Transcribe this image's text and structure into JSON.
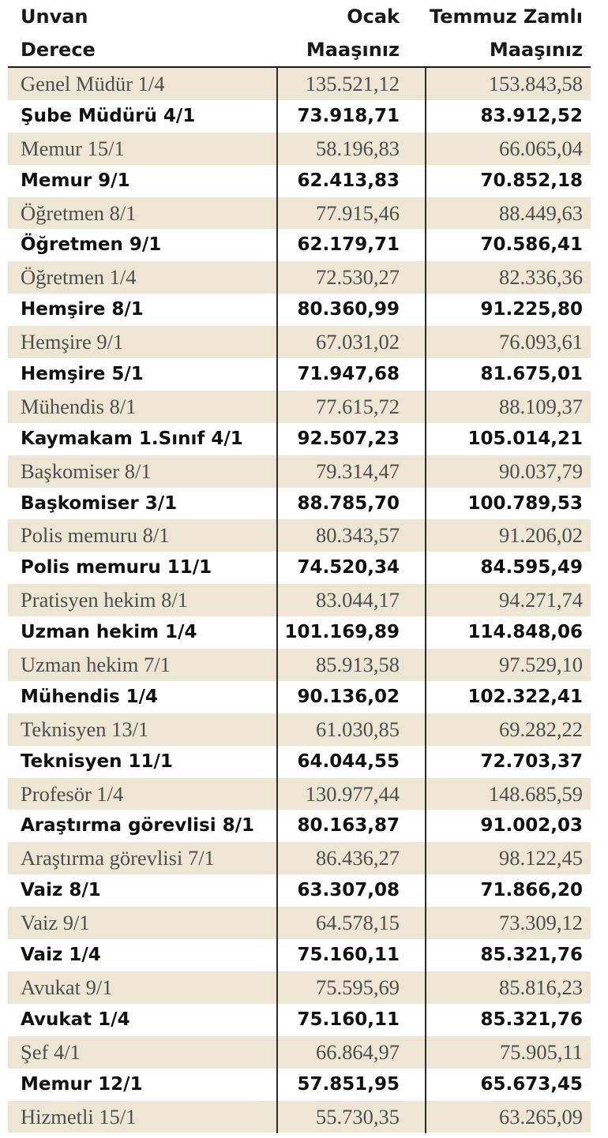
{
  "header": {
    "col1_line1": "Unvan",
    "col1_line2": "Derece",
    "col2_line1": "Ocak",
    "col2_line2": "Maaşınız",
    "col3_line1": "Temmuz Zamlı",
    "col3_line2": "Maaşınız"
  },
  "rows": [
    {
      "title": "Genel Müdür 1/4",
      "jan": "135.521,12",
      "jul": "153.843,58",
      "bold": false
    },
    {
      "title": "Şube Müdürü 4/1",
      "jan": "73.918,71",
      "jul": "83.912,52",
      "bold": true
    },
    {
      "title": "Memur 15/1",
      "jan": "58.196,83",
      "jul": "66.065,04",
      "bold": false
    },
    {
      "title": "Memur 9/1",
      "jan": "62.413,83",
      "jul": "70.852,18",
      "bold": true
    },
    {
      "title": "Öğretmen 8/1",
      "jan": "77.915,46",
      "jul": "88.449,63",
      "bold": false
    },
    {
      "title": "Öğretmen 9/1",
      "jan": "62.179,71",
      "jul": "70.586,41",
      "bold": true
    },
    {
      "title": "Öğretmen 1/4",
      "jan": "72.530,27",
      "jul": "82.336,36",
      "bold": false
    },
    {
      "title": "Hemşire 8/1",
      "jan": "80.360,99",
      "jul": "91.225,80",
      "bold": true
    },
    {
      "title": "Hemşire 9/1",
      "jan": "67.031,02",
      "jul": "76.093,61",
      "bold": false
    },
    {
      "title": "Hemşire 5/1",
      "jan": "71.947,68",
      "jul": "81.675,01",
      "bold": true
    },
    {
      "title": "Mühendis 8/1",
      "jan": "77.615,72",
      "jul": "88.109,37",
      "bold": false
    },
    {
      "title": "Kaymakam 1.Sınıf 4/1",
      "jan": "92.507,23",
      "jul": "105.014,21",
      "bold": true
    },
    {
      "title": "Başkomiser 8/1",
      "jan": "79.314,47",
      "jul": "90.037,79",
      "bold": false
    },
    {
      "title": "Başkomiser 3/1",
      "jan": "88.785,70",
      "jul": "100.789,53",
      "bold": true
    },
    {
      "title": "Polis memuru 8/1",
      "jan": "80.343,57",
      "jul": "91.206,02",
      "bold": false
    },
    {
      "title": "Polis memuru 11/1",
      "jan": "74.520,34",
      "jul": "84.595,49",
      "bold": true
    },
    {
      "title": "Pratisyen hekim 8/1",
      "jan": "83.044,17",
      "jul": "94.271,74",
      "bold": false
    },
    {
      "title": "Uzman hekim 1/4",
      "jan": "101.169,89",
      "jul": "114.848,06",
      "bold": true
    },
    {
      "title": "Uzman hekim 7/1",
      "jan": "85.913,58",
      "jul": "97.529,10",
      "bold": false
    },
    {
      "title": "Mühendis 1/4",
      "jan": "90.136,02",
      "jul": "102.322,41",
      "bold": true
    },
    {
      "title": "Teknisyen 13/1",
      "jan": "61.030,85",
      "jul": "69.282,22",
      "bold": false
    },
    {
      "title": "Teknisyen 11/1",
      "jan": "64.044,55",
      "jul": "72.703,37",
      "bold": true
    },
    {
      "title": "Profesör 1/4",
      "jan": "130.977,44",
      "jul": "148.685,59",
      "bold": false
    },
    {
      "title": "Araştırma görevlisi 8/1",
      "jan": "80.163,87",
      "jul": "91.002,03",
      "bold": true
    },
    {
      "title": "Araştırma görevlisi 7/1",
      "jan": "86.436,27",
      "jul": "98.122,45",
      "bold": false
    },
    {
      "title": "Vaiz 8/1",
      "jan": "63.307,08",
      "jul": "71.866,20",
      "bold": true
    },
    {
      "title": "Vaiz 9/1",
      "jan": "64.578,15",
      "jul": "73.309,12",
      "bold": false
    },
    {
      "title": "Vaiz 1/4",
      "jan": "75.160,11",
      "jul": "85.321,76",
      "bold": true
    },
    {
      "title": "Avukat 9/1",
      "jan": "75.595,69",
      "jul": "85.816,23",
      "bold": false
    },
    {
      "title": "Avukat 1/4",
      "jan": "75.160,11",
      "jul": "85.321,76",
      "bold": true
    },
    {
      "title": "Şef 4/1",
      "jan": "66.864,97",
      "jul": "75.905,11",
      "bold": false
    },
    {
      "title": "Memur 12/1",
      "jan": "57.851,95",
      "jul": "65.673,45",
      "bold": true
    },
    {
      "title": "Hizmetli 15/1",
      "jan": "55.730,35",
      "jul": "63.265,09",
      "bold": false
    }
  ]
}
